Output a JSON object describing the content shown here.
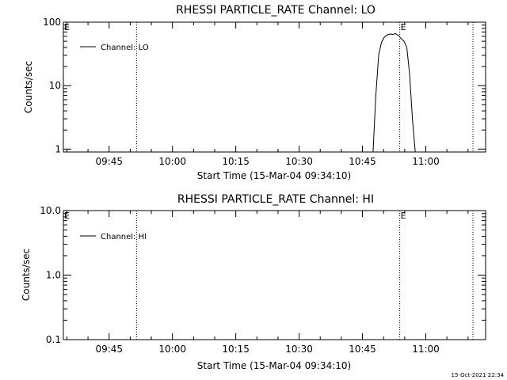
{
  "footer_timestamp": "15-Oct-2021 22:34",
  "chart_data": [
    {
      "type": "line",
      "title": "RHESSI PARTICLE_RATE Channel: LO",
      "xlabel": "Start Time (15-Mar-04 09:34:10)",
      "ylabel": "Counts/sec",
      "yscale": "log",
      "ylim": [
        0.9,
        100
      ],
      "xlim": [
        "09:34:10",
        "11:14:10"
      ],
      "x_ticks": [
        "09:45",
        "10:00",
        "10:15",
        "10:30",
        "10:45",
        "11:00"
      ],
      "y_ticks": [
        "1",
        "10",
        "100"
      ],
      "legend": [
        "Channel: LO"
      ],
      "legend_position": "top-left",
      "grid": false,
      "markers": [
        {
          "label": "E",
          "time": "09:34:10"
        },
        {
          "label": "E",
          "time": "10:53:50"
        }
      ],
      "vertical_lines": [
        "09:51:30",
        "10:53:50",
        "11:11:10"
      ],
      "series": [
        {
          "name": "Channel: LO",
          "x": [
            "10:47:30",
            "10:48:10",
            "10:48:50",
            "10:49:30",
            "10:50:10",
            "10:50:50",
            "10:51:30",
            "10:52:10",
            "10:52:50",
            "10:53:30",
            "10:54:10",
            "10:54:50",
            "10:55:30",
            "10:56:10",
            "10:56:50",
            "10:57:30"
          ],
          "y": [
            0.9,
            7,
            30,
            48,
            58,
            63,
            65,
            64,
            66,
            62,
            55,
            50,
            40,
            15,
            3,
            0.9
          ]
        }
      ]
    },
    {
      "type": "line",
      "title": "RHESSI PARTICLE_RATE Channel: HI",
      "xlabel": "Start Time (15-Mar-04 09:34:10)",
      "ylabel": "Counts/sec",
      "yscale": "log",
      "ylim": [
        0.1,
        10.0
      ],
      "xlim": [
        "09:34:10",
        "11:14:10"
      ],
      "x_ticks": [
        "09:45",
        "10:00",
        "10:15",
        "10:30",
        "10:45",
        "11:00"
      ],
      "y_ticks": [
        "0.1",
        "1.0",
        "10.0"
      ],
      "legend": [
        "Channel: HI"
      ],
      "legend_position": "top-left",
      "grid": false,
      "markers": [
        {
          "label": "E",
          "time": "09:34:10"
        },
        {
          "label": "E",
          "time": "10:53:50"
        }
      ],
      "vertical_lines": [
        "09:51:30",
        "10:53:50",
        "11:11:10"
      ],
      "series": [
        {
          "name": "Channel: HI",
          "x": [],
          "y": []
        }
      ]
    }
  ]
}
